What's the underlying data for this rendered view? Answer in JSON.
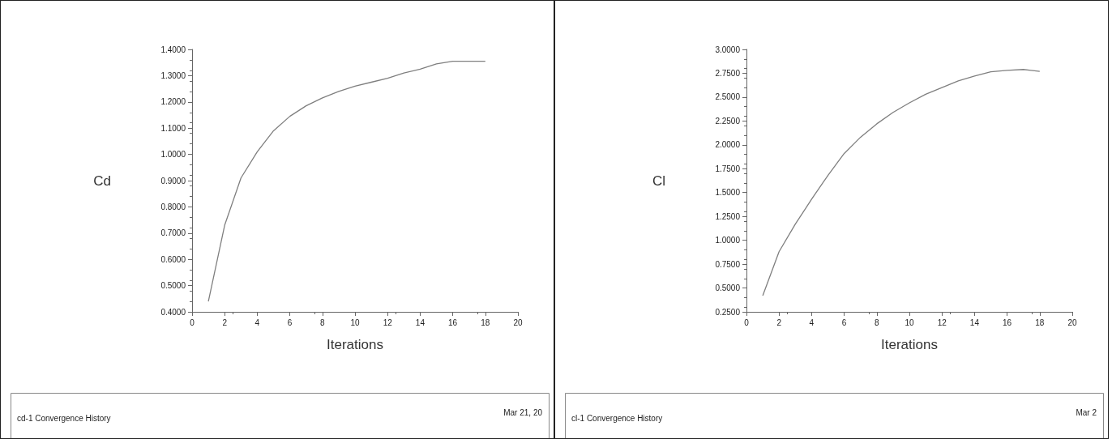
{
  "chart_data": [
    {
      "type": "line",
      "xlabel": "Iterations",
      "ylabel": "Cd",
      "x": [
        1,
        2,
        3,
        4,
        5,
        6,
        7,
        8,
        9,
        10,
        11,
        12,
        13,
        14,
        15,
        16,
        17,
        18
      ],
      "series": [
        {
          "color": "#7f7f7f",
          "values": [
            0.44,
            0.73,
            0.91,
            1.01,
            1.09,
            1.145,
            1.185,
            1.215,
            1.24,
            1.26,
            1.275,
            1.29,
            1.31,
            1.325,
            1.345,
            1.355,
            1.355,
            1.355
          ]
        }
      ],
      "xlim": [
        0,
        20
      ],
      "xticks": [
        0,
        2,
        4,
        6,
        8,
        10,
        12,
        14,
        16,
        18,
        20
      ],
      "ylim": [
        0.4,
        1.4
      ],
      "yticks": [
        {
          "value": 0.4,
          "label": "0.4000"
        },
        {
          "value": 0.5,
          "label": "0.5000"
        },
        {
          "value": 0.6,
          "label": "0.6000"
        },
        {
          "value": 0.7,
          "label": "0.7000"
        },
        {
          "value": 0.8,
          "label": "0.8000"
        },
        {
          "value": 0.9,
          "label": "0.9000"
        },
        {
          "value": 1.0,
          "label": "1.0000"
        },
        {
          "value": 1.1,
          "label": "1.1000"
        },
        {
          "value": 1.2,
          "label": "1.2000"
        },
        {
          "value": 1.3,
          "label": "1.3000"
        },
        {
          "value": 1.4,
          "label": "1.4000"
        }
      ],
      "grid": false,
      "marker": "none",
      "line_style": "solid",
      "annotations": [
        "cd-1 Convergence History",
        "Mar 21, 20"
      ]
    },
    {
      "type": "line",
      "xlabel": "Iterations",
      "ylabel": "Cl",
      "x": [
        1,
        2,
        3,
        4,
        5,
        6,
        7,
        8,
        9,
        10,
        11,
        12,
        13,
        14,
        15,
        16,
        17,
        18
      ],
      "series": [
        {
          "color": "#7f7f7f",
          "values": [
            0.42,
            0.88,
            1.17,
            1.43,
            1.68,
            1.91,
            2.08,
            2.22,
            2.34,
            2.44,
            2.53,
            2.6,
            2.67,
            2.72,
            2.765,
            2.78,
            2.79,
            2.77
          ]
        }
      ],
      "xlim": [
        0,
        20
      ],
      "xticks": [
        0,
        2,
        4,
        6,
        8,
        10,
        12,
        14,
        16,
        18,
        20
      ],
      "ylim": [
        0.25,
        3.0
      ],
      "yticks": [
        {
          "value": 0.25,
          "label": "0.2500"
        },
        {
          "value": 0.5,
          "label": "0.5000"
        },
        {
          "value": 0.75,
          "label": "0.7500"
        },
        {
          "value": 1.0,
          "label": "1.0000"
        },
        {
          "value": 1.25,
          "label": "1.2500"
        },
        {
          "value": 1.5,
          "label": "1.5000"
        },
        {
          "value": 1.75,
          "label": "1.7500"
        },
        {
          "value": 2.0,
          "label": "2.0000"
        },
        {
          "value": 2.25,
          "label": "2.2500"
        },
        {
          "value": 2.5,
          "label": "2.5000"
        },
        {
          "value": 2.75,
          "label": "2.7500"
        },
        {
          "value": 3.0,
          "label": "3.0000"
        }
      ],
      "grid": false,
      "marker": "none",
      "line_style": "solid",
      "annotations": [
        "cl-1 Convergence History",
        "Mar 2"
      ]
    }
  ]
}
